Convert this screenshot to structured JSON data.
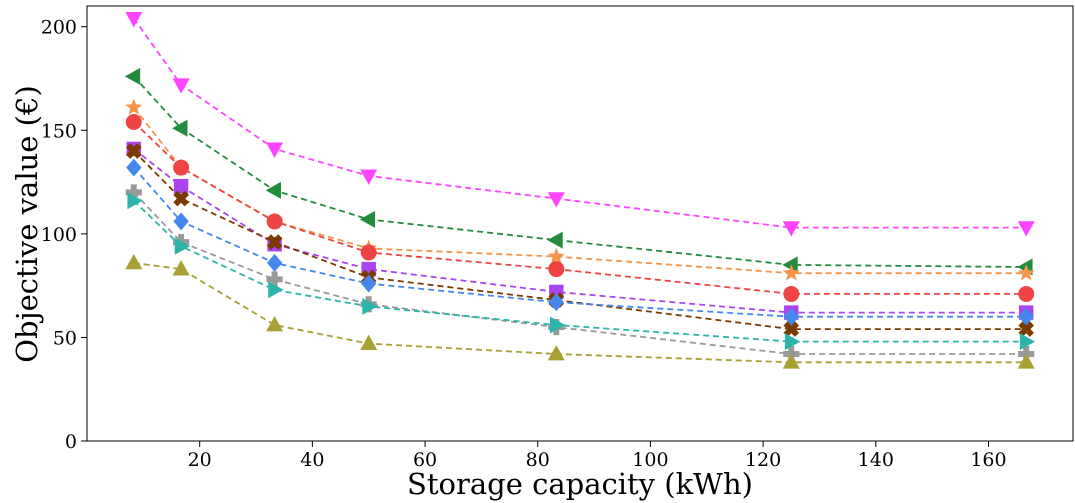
{
  "chart_data": {
    "type": "line",
    "title": "",
    "xlabel": "Storage capacity (kWh)",
    "ylabel": "Objective value (€)",
    "xlim": [
      0,
      175
    ],
    "ylim": [
      0,
      210
    ],
    "xticks": [
      20,
      40,
      60,
      80,
      100,
      120,
      140,
      160
    ],
    "yticks": [
      0,
      50,
      100,
      150,
      200
    ],
    "grid": false,
    "legend": "none",
    "x": [
      8.3,
      16.7,
      33.3,
      50,
      83.3,
      125,
      166.7
    ],
    "series": [
      {
        "color": "#ff44ff",
        "marker": "triangle-down",
        "values": [
          204,
          172,
          141,
          128,
          117,
          103,
          103
        ]
      },
      {
        "color": "#228b3c",
        "marker": "triangle-left",
        "values": [
          176,
          151,
          121,
          107,
          97,
          85,
          84
        ]
      },
      {
        "color": "#f5954a",
        "marker": "star",
        "values": [
          161,
          132,
          106,
          93,
          89,
          81,
          81
        ]
      },
      {
        "color": "#ee4444",
        "marker": "circle",
        "values": [
          154,
          132,
          106,
          91,
          83,
          71,
          71
        ]
      },
      {
        "color": "#aa44ee",
        "marker": "square",
        "values": [
          141,
          123,
          95,
          83,
          72,
          62,
          62
        ]
      },
      {
        "color": "#7a3a00",
        "marker": "x-filled",
        "values": [
          140,
          117,
          96,
          79,
          68,
          54,
          54
        ]
      },
      {
        "color": "#4488ee",
        "marker": "diamond",
        "values": [
          132,
          106,
          86,
          76,
          67,
          60,
          60
        ]
      },
      {
        "color": "#999999",
        "marker": "plus-filled",
        "values": [
          120,
          96,
          78,
          66,
          55,
          42,
          42
        ]
      },
      {
        "color": "#2bb5aa",
        "marker": "triangle-right",
        "values": [
          116,
          94,
          73,
          65,
          56,
          48,
          48
        ]
      },
      {
        "color": "#a8a035",
        "marker": "triangle-up",
        "values": [
          86,
          83,
          56,
          47,
          42,
          38,
          38
        ]
      }
    ]
  }
}
